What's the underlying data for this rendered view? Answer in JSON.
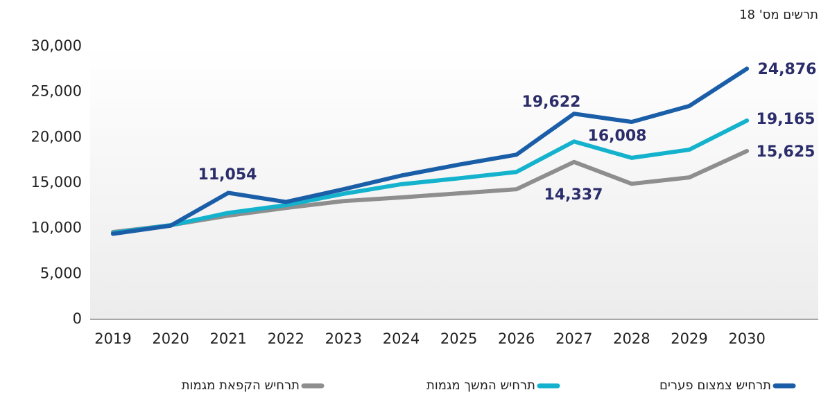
{
  "chart_data": {
    "type": "line",
    "title": "תרשים מס' 18",
    "categories": [
      "2019",
      "2020",
      "2021",
      "2022",
      "2023",
      "2024",
      "2025",
      "2026",
      "2027",
      "2028",
      "2029",
      "2030"
    ],
    "series": [
      {
        "name": "תרחיש צמצום פערים",
        "color": "#1a5ea8",
        "values": [
          9400,
          10300,
          13900,
          12900,
          14300,
          15800,
          17000,
          18100,
          22600,
          21700,
          23450,
          27550
        ]
      },
      {
        "name": "תרחיש המשך מגמות",
        "color": "#14b2cc",
        "values": [
          9500,
          10350,
          11700,
          12550,
          13800,
          14850,
          15500,
          16200,
          19550,
          17750,
          18650,
          21850
        ]
      },
      {
        "name": "תרחיש הקפאת מגמות",
        "color": "#8e8e8e",
        "values": [
          9600,
          10350,
          11400,
          12250,
          13000,
          13400,
          13850,
          14300,
          17300,
          14900,
          15600,
          18500
        ]
      }
    ],
    "annotations": [
      "11,054",
      "19,622",
      "16,008",
      "14,337",
      "24,876",
      "19,165",
      "15,625"
    ],
    "ylim": [
      0,
      30000
    ],
    "yticks": [
      0,
      {
        "value": 5000,
        "label": "5,000"
      },
      {
        "value": 10000,
        "label": "10,000"
      },
      {
        "value": 15000,
        "label": "15,000"
      },
      {
        "value": 20000,
        "label": "20,000"
      },
      {
        "value": 25000,
        "label": "25,000"
      },
      {
        "value": 30000,
        "label": "30,000"
      }
    ]
  }
}
